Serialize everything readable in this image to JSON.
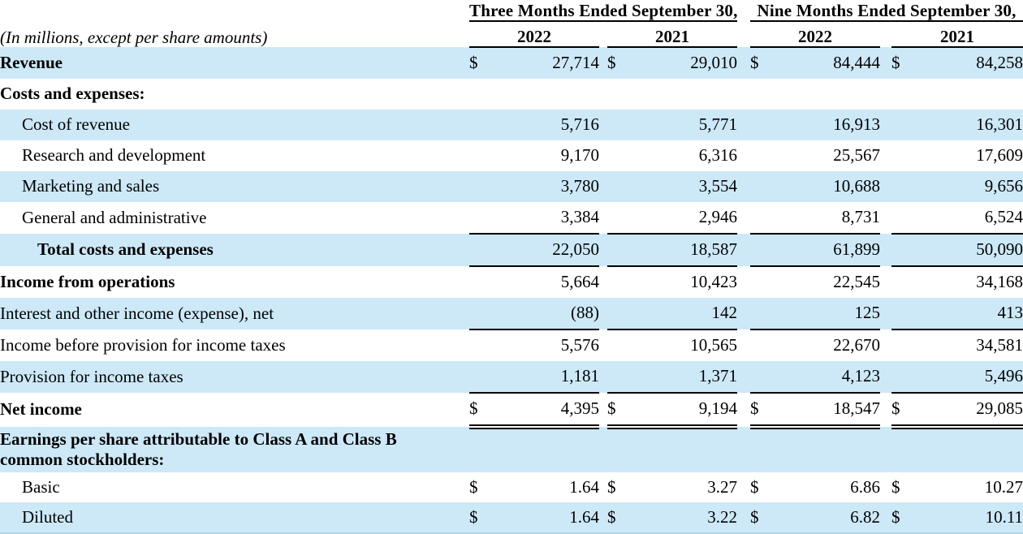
{
  "page": {
    "background_color": "#ffffff",
    "shaded_row_color": "#cde9f8",
    "rule_color": "#000000"
  },
  "note": "(In millions, except per share amounts)",
  "header": {
    "period_groups": [
      {
        "label": "Three Months Ended September 30,",
        "years": [
          "2022",
          "2021"
        ]
      },
      {
        "label": "Nine Months Ended September 30,",
        "years": [
          "2022",
          "2021"
        ]
      }
    ]
  },
  "table": {
    "currency_symbol": "$",
    "columns": [
      "Three Months Ended September 30, 2022",
      "Three Months Ended September 30, 2021",
      "Nine Months Ended September 30, 2022",
      "Nine Months Ended September 30, 2021"
    ],
    "rows": [
      {
        "label": "Revenue",
        "bold": true,
        "indent": 0,
        "shaded": true,
        "dollar": true,
        "rule": "none",
        "values": [
          "27,714",
          "29,010",
          "84,444",
          "84,258"
        ]
      },
      {
        "label": "Costs and expenses:",
        "bold": true,
        "indent": 0,
        "shaded": false,
        "dollar": false,
        "rule": "none",
        "values": [
          "",
          "",
          "",
          ""
        ]
      },
      {
        "label": "Cost of revenue",
        "bold": false,
        "indent": 1,
        "shaded": true,
        "dollar": false,
        "rule": "none",
        "values": [
          "5,716",
          "5,771",
          "16,913",
          "16,301"
        ]
      },
      {
        "label": "Research and development",
        "bold": false,
        "indent": 1,
        "shaded": false,
        "dollar": false,
        "rule": "none",
        "values": [
          "9,170",
          "6,316",
          "25,567",
          "17,609"
        ]
      },
      {
        "label": "Marketing and sales",
        "bold": false,
        "indent": 1,
        "shaded": true,
        "dollar": false,
        "rule": "none",
        "values": [
          "3,780",
          "3,554",
          "10,688",
          "9,656"
        ]
      },
      {
        "label": "General and administrative",
        "bold": false,
        "indent": 1,
        "shaded": false,
        "dollar": false,
        "rule": "single",
        "values": [
          "3,384",
          "2,946",
          "8,731",
          "6,524"
        ]
      },
      {
        "label": "Total costs and expenses",
        "bold": true,
        "indent": 2,
        "shaded": true,
        "dollar": false,
        "rule": "single",
        "values": [
          "22,050",
          "18,587",
          "61,899",
          "50,090"
        ]
      },
      {
        "label": "Income from operations",
        "bold": true,
        "indent": 0,
        "shaded": false,
        "dollar": false,
        "rule": "none",
        "values": [
          "5,664",
          "10,423",
          "22,545",
          "34,168"
        ]
      },
      {
        "label": "Interest and other income (expense), net",
        "bold": false,
        "indent": 0,
        "shaded": true,
        "dollar": false,
        "rule": "single",
        "values": [
          "(88)",
          "142",
          "125",
          "413"
        ]
      },
      {
        "label": "Income before provision for income taxes",
        "bold": false,
        "indent": 0,
        "shaded": false,
        "dollar": false,
        "rule": "none",
        "values": [
          "5,576",
          "10,565",
          "22,670",
          "34,581"
        ]
      },
      {
        "label": "Provision for income taxes",
        "bold": false,
        "indent": 0,
        "shaded": true,
        "dollar": false,
        "rule": "single",
        "values": [
          "1,181",
          "1,371",
          "4,123",
          "5,496"
        ]
      },
      {
        "label": "Net income",
        "bold": true,
        "indent": 0,
        "shaded": false,
        "dollar": true,
        "rule": "double",
        "values": [
          "4,395",
          "9,194",
          "18,547",
          "29,085"
        ]
      },
      {
        "label": "Earnings per share attributable to Class A and Class B common stockholders:",
        "bold": true,
        "indent": 0,
        "shaded": true,
        "dollar": false,
        "rule": "none",
        "tall": true,
        "values": [
          "",
          "",
          "",
          ""
        ]
      },
      {
        "label": "Basic",
        "bold": false,
        "indent": 1,
        "shaded": false,
        "dollar": true,
        "rule": "none",
        "values": [
          "1.64",
          "3.27",
          "6.86",
          "10.27"
        ]
      },
      {
        "label": "Diluted",
        "bold": false,
        "indent": 1,
        "shaded": true,
        "dollar": true,
        "rule": "none",
        "last": true,
        "values": [
          "1.64",
          "3.22",
          "6.82",
          "10.11"
        ]
      }
    ]
  }
}
